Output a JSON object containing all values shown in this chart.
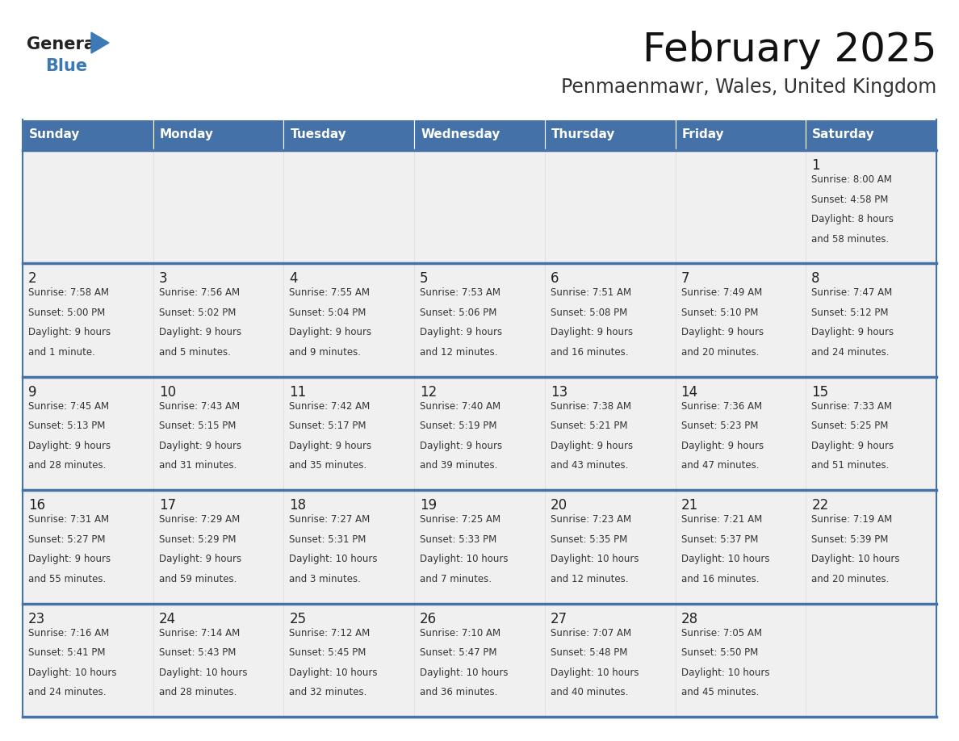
{
  "title": "February 2025",
  "subtitle": "Penmaenmawr, Wales, United Kingdom",
  "header_color": "#4472a8",
  "header_text_color": "#ffffff",
  "cell_bg": "#f0f0f0",
  "border_color": "#4472a8",
  "cell_border_color": "#cccccc",
  "text_color": "#333333",
  "day_number_color": "#222222",
  "days_of_week": [
    "Sunday",
    "Monday",
    "Tuesday",
    "Wednesday",
    "Thursday",
    "Friday",
    "Saturday"
  ],
  "logo_general_color": "#222222",
  "logo_blue_color": "#3d7ab5",
  "calendar_data": [
    [
      null,
      null,
      null,
      null,
      null,
      null,
      {
        "day": 1,
        "sunrise": "8:00 AM",
        "sunset": "4:58 PM",
        "daylight_hours": 8,
        "daylight_minutes": 58
      }
    ],
    [
      {
        "day": 2,
        "sunrise": "7:58 AM",
        "sunset": "5:00 PM",
        "daylight_hours": 9,
        "daylight_minutes": 1
      },
      {
        "day": 3,
        "sunrise": "7:56 AM",
        "sunset": "5:02 PM",
        "daylight_hours": 9,
        "daylight_minutes": 5
      },
      {
        "day": 4,
        "sunrise": "7:55 AM",
        "sunset": "5:04 PM",
        "daylight_hours": 9,
        "daylight_minutes": 9
      },
      {
        "day": 5,
        "sunrise": "7:53 AM",
        "sunset": "5:06 PM",
        "daylight_hours": 9,
        "daylight_minutes": 12
      },
      {
        "day": 6,
        "sunrise": "7:51 AM",
        "sunset": "5:08 PM",
        "daylight_hours": 9,
        "daylight_minutes": 16
      },
      {
        "day": 7,
        "sunrise": "7:49 AM",
        "sunset": "5:10 PM",
        "daylight_hours": 9,
        "daylight_minutes": 20
      },
      {
        "day": 8,
        "sunrise": "7:47 AM",
        "sunset": "5:12 PM",
        "daylight_hours": 9,
        "daylight_minutes": 24
      }
    ],
    [
      {
        "day": 9,
        "sunrise": "7:45 AM",
        "sunset": "5:13 PM",
        "daylight_hours": 9,
        "daylight_minutes": 28
      },
      {
        "day": 10,
        "sunrise": "7:43 AM",
        "sunset": "5:15 PM",
        "daylight_hours": 9,
        "daylight_minutes": 31
      },
      {
        "day": 11,
        "sunrise": "7:42 AM",
        "sunset": "5:17 PM",
        "daylight_hours": 9,
        "daylight_minutes": 35
      },
      {
        "day": 12,
        "sunrise": "7:40 AM",
        "sunset": "5:19 PM",
        "daylight_hours": 9,
        "daylight_minutes": 39
      },
      {
        "day": 13,
        "sunrise": "7:38 AM",
        "sunset": "5:21 PM",
        "daylight_hours": 9,
        "daylight_minutes": 43
      },
      {
        "day": 14,
        "sunrise": "7:36 AM",
        "sunset": "5:23 PM",
        "daylight_hours": 9,
        "daylight_minutes": 47
      },
      {
        "day": 15,
        "sunrise": "7:33 AM",
        "sunset": "5:25 PM",
        "daylight_hours": 9,
        "daylight_minutes": 51
      }
    ],
    [
      {
        "day": 16,
        "sunrise": "7:31 AM",
        "sunset": "5:27 PM",
        "daylight_hours": 9,
        "daylight_minutes": 55
      },
      {
        "day": 17,
        "sunrise": "7:29 AM",
        "sunset": "5:29 PM",
        "daylight_hours": 9,
        "daylight_minutes": 59
      },
      {
        "day": 18,
        "sunrise": "7:27 AM",
        "sunset": "5:31 PM",
        "daylight_hours": 10,
        "daylight_minutes": 3
      },
      {
        "day": 19,
        "sunrise": "7:25 AM",
        "sunset": "5:33 PM",
        "daylight_hours": 10,
        "daylight_minutes": 7
      },
      {
        "day": 20,
        "sunrise": "7:23 AM",
        "sunset": "5:35 PM",
        "daylight_hours": 10,
        "daylight_minutes": 12
      },
      {
        "day": 21,
        "sunrise": "7:21 AM",
        "sunset": "5:37 PM",
        "daylight_hours": 10,
        "daylight_minutes": 16
      },
      {
        "day": 22,
        "sunrise": "7:19 AM",
        "sunset": "5:39 PM",
        "daylight_hours": 10,
        "daylight_minutes": 20
      }
    ],
    [
      {
        "day": 23,
        "sunrise": "7:16 AM",
        "sunset": "5:41 PM",
        "daylight_hours": 10,
        "daylight_minutes": 24
      },
      {
        "day": 24,
        "sunrise": "7:14 AM",
        "sunset": "5:43 PM",
        "daylight_hours": 10,
        "daylight_minutes": 28
      },
      {
        "day": 25,
        "sunrise": "7:12 AM",
        "sunset": "5:45 PM",
        "daylight_hours": 10,
        "daylight_minutes": 32
      },
      {
        "day": 26,
        "sunrise": "7:10 AM",
        "sunset": "5:47 PM",
        "daylight_hours": 10,
        "daylight_minutes": 36
      },
      {
        "day": 27,
        "sunrise": "7:07 AM",
        "sunset": "5:48 PM",
        "daylight_hours": 10,
        "daylight_minutes": 40
      },
      {
        "day": 28,
        "sunrise": "7:05 AM",
        "sunset": "5:50 PM",
        "daylight_hours": 10,
        "daylight_minutes": 45
      },
      null
    ]
  ]
}
